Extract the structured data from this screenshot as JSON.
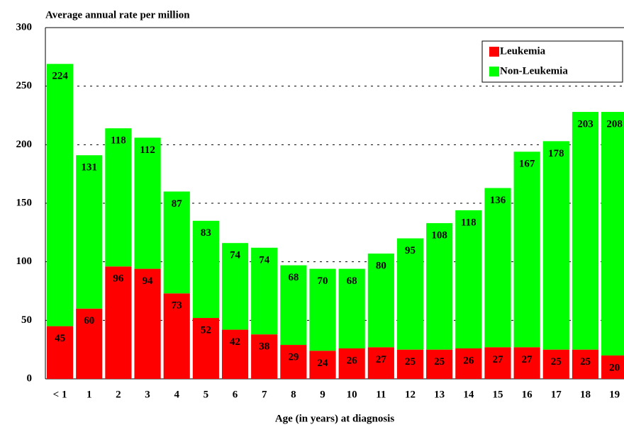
{
  "chart_data": {
    "type": "stacked-bar",
    "title": "Average annual rate per million",
    "x_label": "Age (in years) at diagnosis",
    "categories": [
      "< 1",
      "1",
      "2",
      "3",
      "4",
      "5",
      "6",
      "7",
      "8",
      "9",
      "10",
      "11",
      "12",
      "13",
      "14",
      "15",
      "16",
      "17",
      "18",
      "19"
    ],
    "series": [
      {
        "name": "Leukemia",
        "color": "#ff0000",
        "values": [
          45,
          60,
          96,
          94,
          73,
          52,
          42,
          38,
          29,
          24,
          26,
          27,
          25,
          25,
          26,
          27,
          27,
          25,
          25,
          20
        ]
      },
      {
        "name": "Non-Leukemia",
        "color": "#00ff00",
        "values": [
          224,
          131,
          118,
          112,
          87,
          83,
          74,
          74,
          68,
          70,
          68,
          80,
          95,
          108,
          118,
          136,
          167,
          178,
          203,
          208
        ]
      }
    ],
    "ylim": [
      0,
      300
    ],
    "yticks": [
      0,
      50,
      100,
      150,
      200,
      250,
      300
    ],
    "grid": true,
    "legend": "top-right"
  }
}
